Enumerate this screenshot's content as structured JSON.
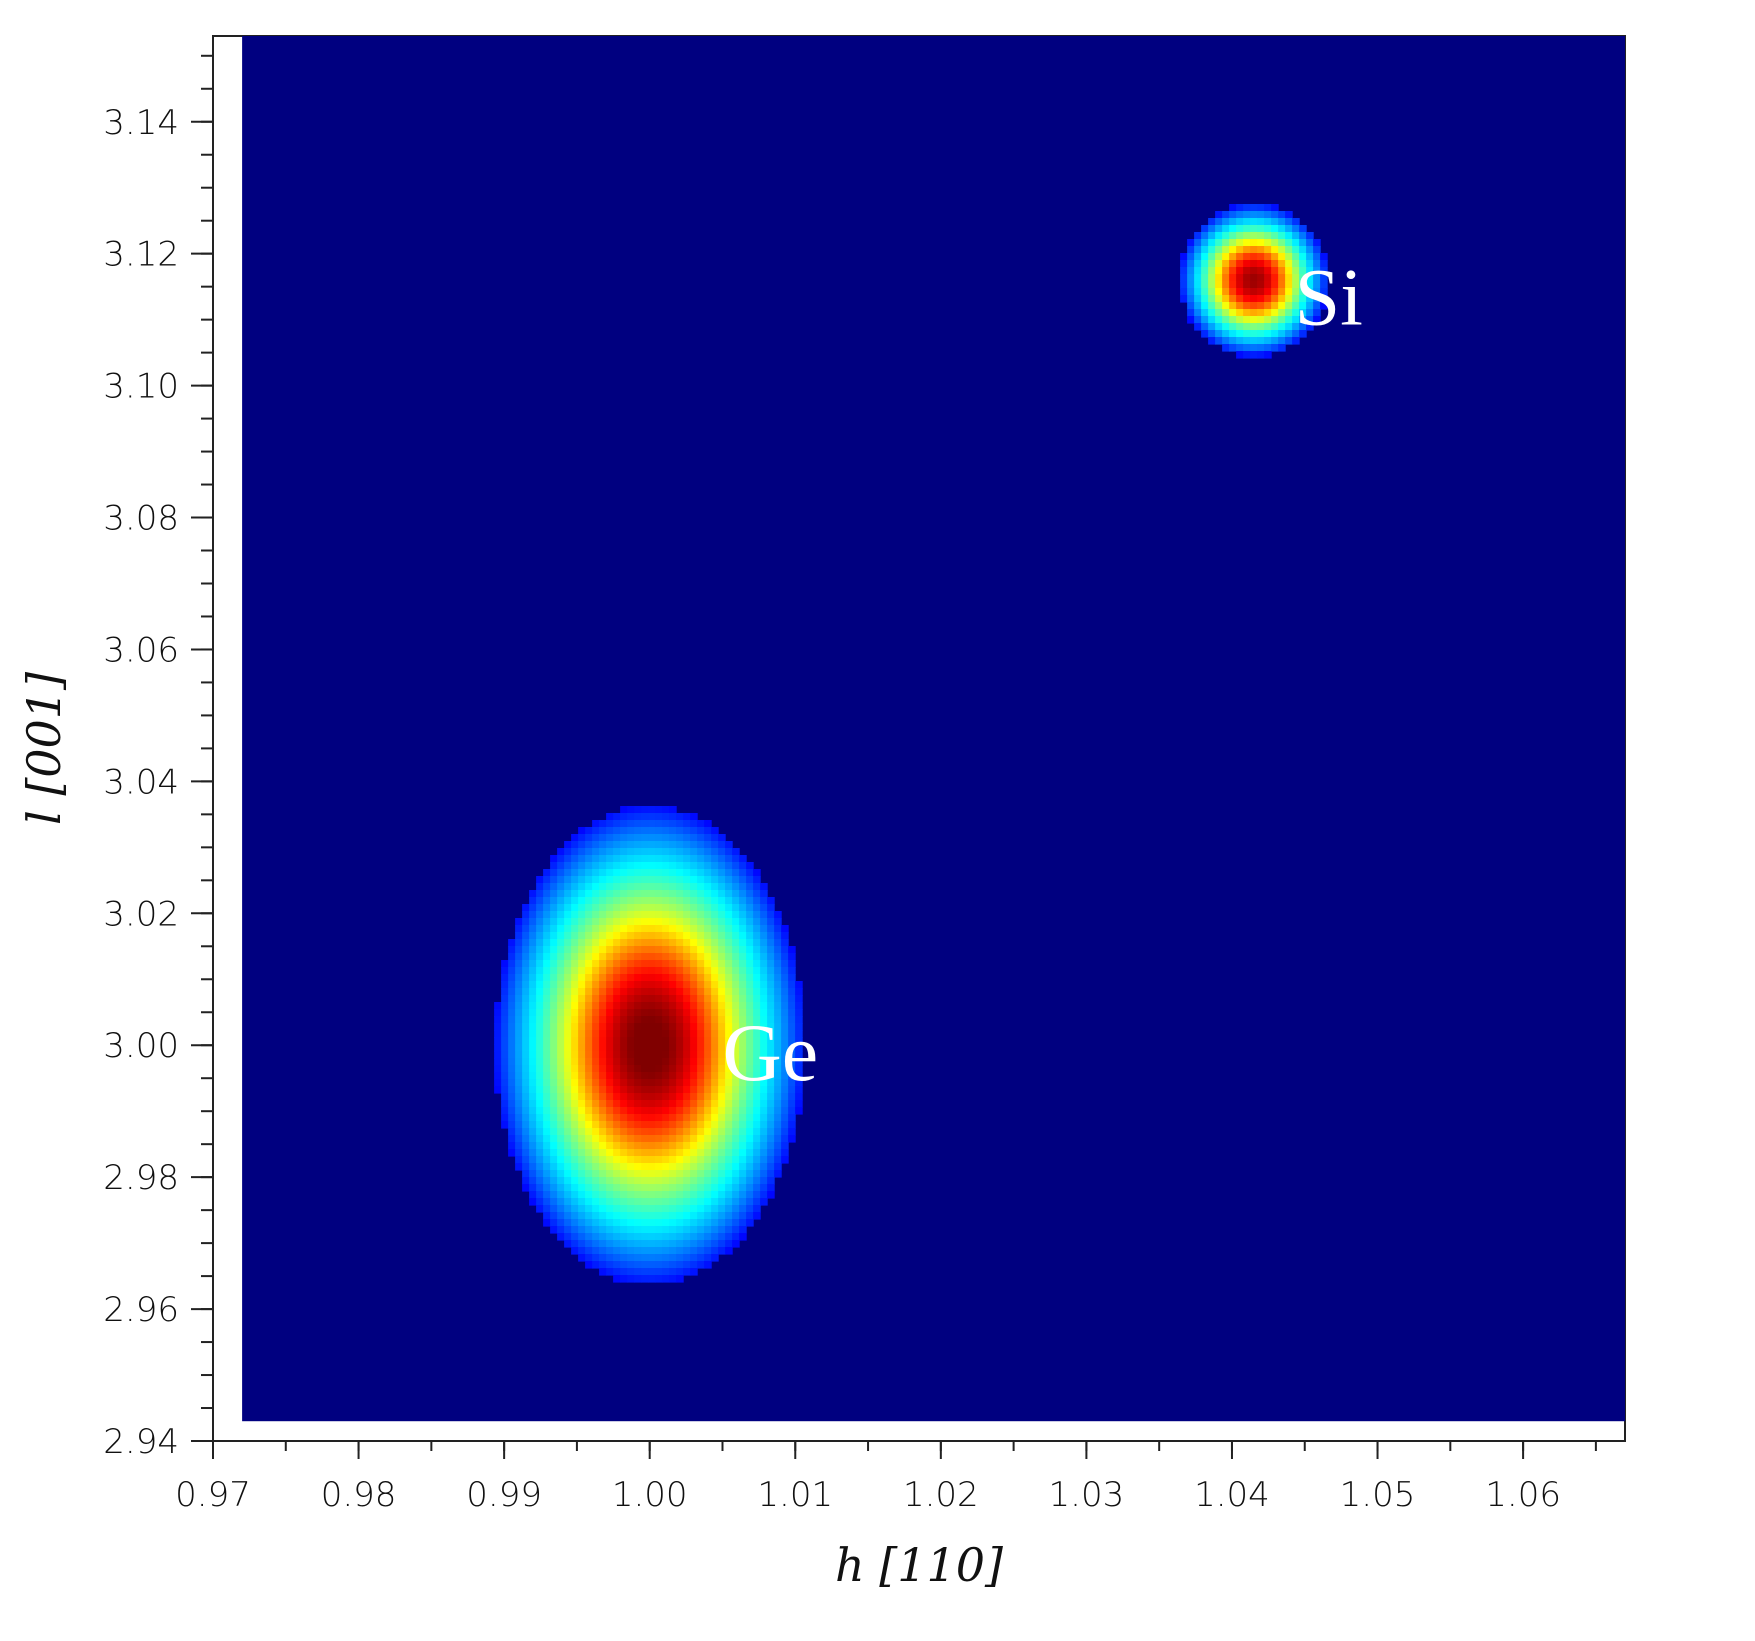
{
  "chart_data": {
    "type": "heatmap",
    "title": "",
    "xlabel": "h [110]",
    "ylabel": "l [001]",
    "xlim": [
      0.97,
      1.067
    ],
    "ylim": [
      2.94,
      3.153
    ],
    "data_xlim": [
      0.972,
      1.067
    ],
    "data_ylim": [
      2.943,
      3.153
    ],
    "x_ticks": [
      0.97,
      0.98,
      0.99,
      1.0,
      1.01,
      1.02,
      1.03,
      1.04,
      1.05,
      1.06
    ],
    "x_tick_labels": [
      "0.97",
      "0.98",
      "0.99",
      "1.00",
      "1.01",
      "1.02",
      "1.03",
      "1.04",
      "1.05",
      "1.06"
    ],
    "y_ticks": [
      2.94,
      2.96,
      2.98,
      3.0,
      3.02,
      3.04,
      3.06,
      3.08,
      3.1,
      3.12,
      3.14
    ],
    "y_tick_labels": [
      "2.94",
      "2.96",
      "2.98",
      "3.00",
      "3.02",
      "3.04",
      "3.06",
      "3.08",
      "3.10",
      "3.12",
      "3.14"
    ],
    "grid": false,
    "colormap": "jet",
    "background_color": "#000080",
    "peaks": [
      {
        "label": "Ge",
        "h": 1.0,
        "l": 3.0,
        "intensity": 1.0,
        "sigma_h": 0.0022,
        "sigma_l": 0.0075
      },
      {
        "label": "Si",
        "h": 1.0415,
        "l": 3.116,
        "intensity": 0.75,
        "sigma_h": 0.0011,
        "sigma_l": 0.0025
      }
    ],
    "annotations": [
      {
        "text": "Ge",
        "h": 1.005,
        "l": 2.999
      },
      {
        "text": "Si",
        "h": 1.0443,
        "l": 3.1135
      }
    ]
  }
}
